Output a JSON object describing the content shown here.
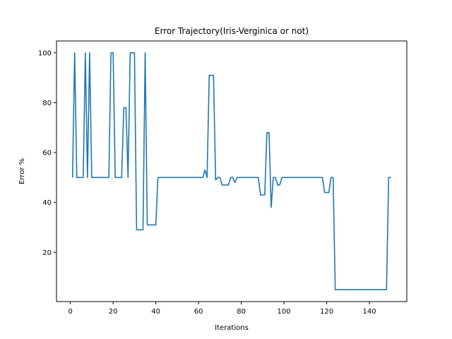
{
  "chart_data": {
    "type": "line",
    "title": "Error Trajectory(Iris-Verginica or not)",
    "xlabel": "Iterations",
    "ylabel": "Error %",
    "xlim": [
      -6.5,
      157.5
    ],
    "ylim": [
      0.25,
      104.75
    ],
    "xticks": [
      0,
      20,
      40,
      60,
      80,
      100,
      120,
      140
    ],
    "yticks": [
      20,
      40,
      60,
      80,
      100
    ],
    "grid": false,
    "color": "#1f77b4",
    "series": [
      {
        "x": [
          1,
          2,
          3,
          4,
          5,
          6,
          7,
          8,
          9,
          10,
          11,
          12,
          13,
          14,
          15,
          16,
          17,
          18,
          19,
          20,
          21,
          22,
          23,
          24,
          25,
          26,
          27,
          28,
          29,
          30,
          31,
          32,
          33,
          34,
          35,
          36,
          37,
          38,
          39,
          40,
          41,
          42,
          43,
          44,
          45,
          46,
          47,
          48,
          49,
          50,
          51,
          52,
          53,
          54,
          55,
          56,
          57,
          58,
          59,
          60,
          61,
          62,
          63,
          64,
          65,
          66,
          67,
          68,
          69,
          70,
          71,
          72,
          73,
          74,
          75,
          76,
          77,
          78,
          79,
          80,
          81,
          82,
          83,
          84,
          85,
          86,
          87,
          88,
          89,
          90,
          91,
          92,
          93,
          94,
          95,
          96,
          97,
          98,
          99,
          100,
          101,
          102,
          103,
          104,
          105,
          106,
          107,
          108,
          109,
          110,
          111,
          112,
          113,
          114,
          115,
          116,
          117,
          118,
          119,
          120,
          121,
          122,
          123,
          124,
          125,
          126,
          127,
          128,
          129,
          130,
          131,
          132,
          133,
          134,
          135,
          136,
          137,
          138,
          139,
          140,
          141,
          142,
          143,
          144,
          145,
          146,
          147,
          148,
          149,
          150
        ],
        "y": [
          50,
          100,
          50,
          50,
          50,
          50,
          100,
          50,
          100,
          50,
          50,
          50,
          50,
          50,
          50,
          50,
          50,
          50,
          100,
          100,
          50,
          50,
          50,
          50,
          78,
          78,
          50,
          100,
          100,
          100,
          29,
          29,
          29,
          29,
          100,
          31,
          31,
          31,
          31,
          31,
          50,
          50,
          50,
          50,
          50,
          50,
          50,
          50,
          50,
          50,
          50,
          50,
          50,
          50,
          50,
          50,
          50,
          50,
          50,
          50,
          50,
          50,
          53,
          50,
          91,
          91,
          91,
          49,
          50,
          50,
          47,
          47,
          47,
          47,
          50,
          50,
          48,
          50,
          50,
          50,
          50,
          50,
          50,
          50,
          50,
          50,
          50,
          50,
          43,
          43,
          43,
          68,
          68,
          38,
          50,
          50,
          47,
          47,
          50,
          50,
          50,
          50,
          50,
          50,
          50,
          50,
          50,
          50,
          50,
          50,
          50,
          50,
          50,
          50,
          50,
          50,
          50,
          50,
          44,
          44,
          44,
          50,
          50,
          5,
          5,
          5,
          5,
          5,
          5,
          5,
          5,
          5,
          5,
          5,
          5,
          5,
          5,
          5,
          5,
          5,
          5,
          5,
          5,
          5,
          5,
          5,
          5,
          5,
          50,
          50
        ]
      }
    ]
  }
}
